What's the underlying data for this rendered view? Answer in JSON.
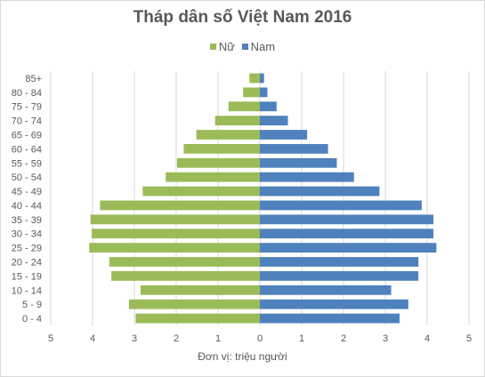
{
  "chart_data": {
    "type": "bar",
    "orientation": "horizontal",
    "title": "Tháp dân số Việt Nam 2016",
    "xlabel": "Đơn vị: triệu người",
    "ylabel": "",
    "categories": [
      "0 - 4",
      "5 - 9",
      "10 - 14",
      "15 - 19",
      "20 - 24",
      "25 - 29",
      "30 - 34",
      "35 - 39",
      "40 - 44",
      "45 - 49",
      "50 - 54",
      "55 - 59",
      "60 - 64",
      "65 - 69",
      "70 - 74",
      "75 - 79",
      "80 - 84",
      "85+"
    ],
    "series": [
      {
        "name": "Nữ",
        "color": "#9bbb59",
        "values": [
          2.97,
          3.13,
          2.85,
          3.55,
          3.6,
          4.08,
          4.02,
          4.05,
          3.82,
          2.8,
          2.25,
          1.98,
          1.82,
          1.52,
          1.07,
          0.75,
          0.4,
          0.25
        ]
      },
      {
        "name": "Nam",
        "color": "#4f81bd",
        "values": [
          3.34,
          3.55,
          3.14,
          3.79,
          3.79,
          4.22,
          4.15,
          4.15,
          3.87,
          2.86,
          2.25,
          1.84,
          1.63,
          1.13,
          0.67,
          0.4,
          0.18,
          0.1
        ]
      }
    ],
    "xlim": [
      -5,
      5
    ],
    "xticks": [
      -5,
      -4,
      -3,
      -2,
      -1,
      0,
      1,
      2,
      3,
      4,
      5
    ],
    "xtick_labels": [
      "5",
      "4",
      "3",
      "2",
      "1",
      "0",
      "1",
      "2",
      "3",
      "4",
      "5"
    ],
    "grid": true,
    "legend_position": "top"
  }
}
